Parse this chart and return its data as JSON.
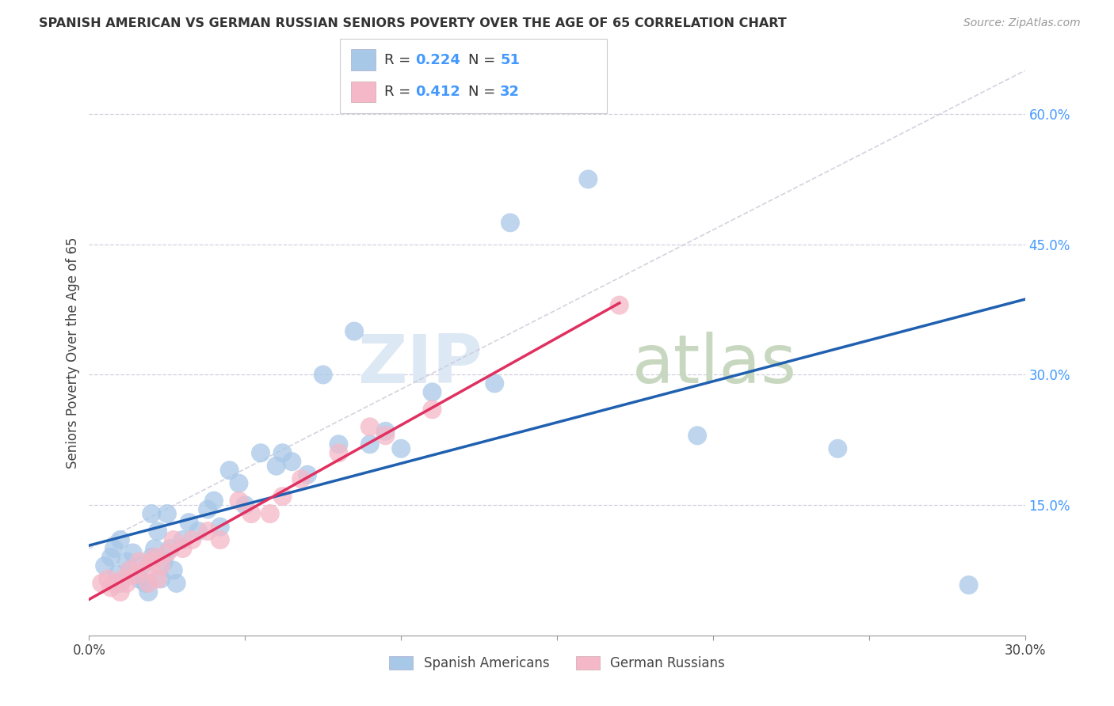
{
  "title": "SPANISH AMERICAN VS GERMAN RUSSIAN SENIORS POVERTY OVER THE AGE OF 65 CORRELATION CHART",
  "source": "Source: ZipAtlas.com",
  "ylabel": "Seniors Poverty Over the Age of 65",
  "xlim": [
    0.0,
    0.3
  ],
  "ylim": [
    0.0,
    0.65
  ],
  "ytick_right_labels": [
    "15.0%",
    "30.0%",
    "45.0%",
    "60.0%"
  ],
  "ytick_right_values": [
    0.15,
    0.3,
    0.45,
    0.6
  ],
  "watermark_zip": "ZIP",
  "watermark_atlas": "atlas",
  "blue_R": 0.224,
  "blue_N": 51,
  "pink_R": 0.412,
  "pink_N": 32,
  "blue_color": "#a8c8e8",
  "pink_color": "#f4b8c8",
  "blue_line_color": "#2060b0",
  "pink_line_color": "#e03060",
  "dashed_line_color": "#c8c8d8",
  "background_color": "#ffffff",
  "grid_color": "#d0d0e0",
  "legend_color": "#4499ff",
  "blue_scatter_x": [
    0.005,
    0.007,
    0.008,
    0.009,
    0.01,
    0.01,
    0.012,
    0.013,
    0.014,
    0.015,
    0.016,
    0.017,
    0.018,
    0.019,
    0.02,
    0.02,
    0.021,
    0.022,
    0.023,
    0.024,
    0.025,
    0.026,
    0.027,
    0.028,
    0.03,
    0.032,
    0.035,
    0.038,
    0.04,
    0.042,
    0.045,
    0.048,
    0.05,
    0.055,
    0.06,
    0.062,
    0.065,
    0.07,
    0.075,
    0.08,
    0.085,
    0.09,
    0.095,
    0.1,
    0.11,
    0.13,
    0.135,
    0.16,
    0.195,
    0.24,
    0.282
  ],
  "blue_scatter_y": [
    0.08,
    0.09,
    0.1,
    0.07,
    0.11,
    0.06,
    0.085,
    0.075,
    0.095,
    0.07,
    0.065,
    0.08,
    0.06,
    0.05,
    0.09,
    0.14,
    0.1,
    0.12,
    0.065,
    0.085,
    0.14,
    0.1,
    0.075,
    0.06,
    0.11,
    0.13,
    0.12,
    0.145,
    0.155,
    0.125,
    0.19,
    0.175,
    0.15,
    0.21,
    0.195,
    0.21,
    0.2,
    0.185,
    0.3,
    0.22,
    0.35,
    0.22,
    0.235,
    0.215,
    0.28,
    0.29,
    0.475,
    0.525,
    0.23,
    0.215,
    0.058
  ],
  "pink_scatter_x": [
    0.004,
    0.006,
    0.007,
    0.008,
    0.01,
    0.011,
    0.012,
    0.013,
    0.015,
    0.016,
    0.018,
    0.019,
    0.02,
    0.021,
    0.022,
    0.023,
    0.025,
    0.027,
    0.03,
    0.033,
    0.038,
    0.042,
    0.048,
    0.052,
    0.058,
    0.062,
    0.068,
    0.08,
    0.09,
    0.095,
    0.11,
    0.17
  ],
  "pink_scatter_y": [
    0.06,
    0.065,
    0.055,
    0.06,
    0.05,
    0.065,
    0.06,
    0.075,
    0.07,
    0.085,
    0.075,
    0.06,
    0.085,
    0.09,
    0.065,
    0.08,
    0.095,
    0.11,
    0.1,
    0.11,
    0.12,
    0.11,
    0.155,
    0.14,
    0.14,
    0.16,
    0.18,
    0.21,
    0.24,
    0.23,
    0.26,
    0.38
  ]
}
